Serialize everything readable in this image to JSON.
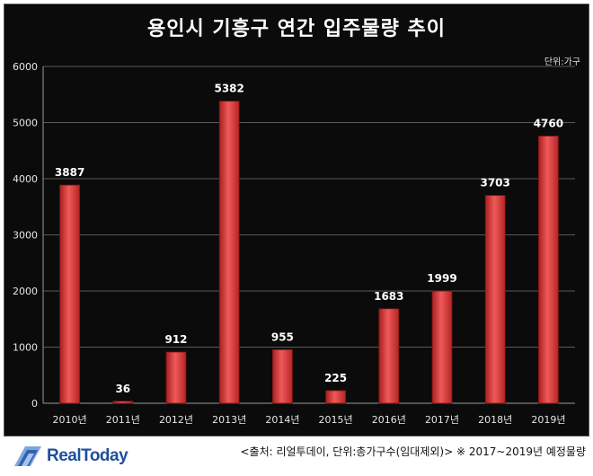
{
  "chart_data": {
    "type": "bar",
    "title": "용인시 기흥구 연간 입주물량 추이",
    "unit_label": "단위:가구",
    "categories": [
      "2010년",
      "2011년",
      "2012년",
      "2013년",
      "2014년",
      "2015년",
      "2016년",
      "2017년",
      "2018년",
      "2019년"
    ],
    "values": [
      3887,
      36,
      912,
      5382,
      955,
      225,
      1683,
      1999,
      3703,
      4760
    ],
    "ylim": [
      0,
      6000
    ],
    "yticks": [
      0,
      1000,
      2000,
      3000,
      4000,
      5000,
      6000
    ],
    "grid": true,
    "legend": "none",
    "bar_color": "#d93a3a",
    "background_color": "#0b0b0b"
  },
  "footer": {
    "logo_text": "RealToday",
    "source": "<출처: 리얼투데이, 단위:총가구수(임대제외)> ※ 2017~2019년 예정물량"
  },
  "colors": {
    "logo": "#1f4e9c"
  }
}
